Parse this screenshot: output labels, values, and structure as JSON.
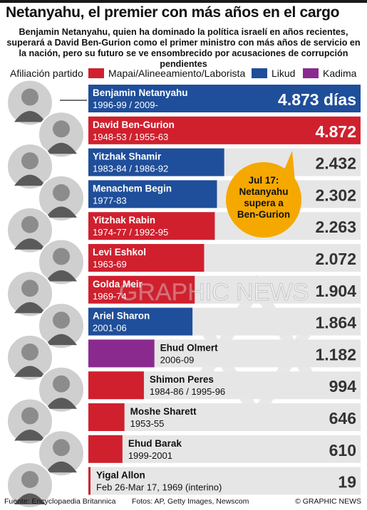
{
  "title": "Netanyahu, el premier con más años en el cargo",
  "subtitle": "Benjamin Netanyahu, quien ha dominado la política israelí en años recientes, superará a David Ben-Gurion como el primer ministro con más años de servicio en la nación, pero su futuro se ve ensombrecido por acusaciones de corrupción pendientes",
  "legend": {
    "title": "Afiliación partido",
    "items": [
      {
        "label": "Mapai/Alineeamiento/Laborista",
        "color": "#d0202e"
      },
      {
        "label": "Likud",
        "color": "#1f4e9a"
      },
      {
        "label": "Kadima",
        "color": "#8a2a8f"
      }
    ]
  },
  "callout": {
    "lines": [
      "Jul 17:",
      "Netanyahu",
      "supera a",
      "Ben-Gurion"
    ],
    "color": "#f5a800"
  },
  "watermark": "GRAPHIC NEWS",
  "footer": {
    "source": "Fuente: Encyclopaedia Britannica",
    "photos": "Fotos: AP, Getty Images, Newscom",
    "credit": "© GRAPHIC NEWS"
  },
  "chart_data": {
    "type": "bar",
    "orientation": "horizontal",
    "unit": "días",
    "bars": [
      {
        "name": "Benjamin Netanyahu",
        "terms": "1996-99 / 2009-",
        "value": 4873,
        "label": "4.873 días",
        "party": "Likud"
      },
      {
        "name": "David Ben-Gurion",
        "terms": "1948-53 / 1955-63",
        "value": 4872,
        "label": "4.872",
        "party": "Mapai/Alineeamiento/Laborista"
      },
      {
        "name": "Yitzhak Shamir",
        "terms": "1983-84 / 1986-92",
        "value": 2432,
        "label": "2.432",
        "party": "Likud"
      },
      {
        "name": "Menachem Begin",
        "terms": "1977-83",
        "value": 2302,
        "label": "2.302",
        "party": "Likud"
      },
      {
        "name": "Yitzhak Rabin",
        "terms": "1974-77 / 1992-95",
        "value": 2263,
        "label": "2.263",
        "party": "Mapai/Alineeamiento/Laborista"
      },
      {
        "name": "Levi Eshkol",
        "terms": "1963-69",
        "value": 2072,
        "label": "2.072",
        "party": "Mapai/Alineeamiento/Laborista"
      },
      {
        "name": "Golda Meir",
        "terms": "1969-74",
        "value": 1904,
        "label": "1.904",
        "party": "Mapai/Alineeamiento/Laborista"
      },
      {
        "name": "Ariel Sharon",
        "terms": "2001-06",
        "value": 1864,
        "label": "1.864",
        "party": "Likud"
      },
      {
        "name": "Ehud Olmert",
        "terms": "2006-09",
        "value": 1182,
        "label": "1.182",
        "party": "Kadima"
      },
      {
        "name": "Shimon Peres",
        "terms": "1984-86 / 1995-96",
        "value": 994,
        "label": "994",
        "party": "Mapai/Alineeamiento/Laborista"
      },
      {
        "name": "Moshe Sharett",
        "terms": "1953-55",
        "value": 646,
        "label": "646",
        "party": "Mapai/Alineeamiento/Laborista"
      },
      {
        "name": "Ehud Barak",
        "terms": "1999-2001",
        "value": 610,
        "label": "610",
        "party": "Mapai/Alineeamiento/Laborista"
      },
      {
        "name": "Yigal Allon",
        "terms": "Feb 26-Mar 17, 1969  (interino)",
        "value": 19,
        "label": "19",
        "party": "Mapai/Alineeamiento/Laborista"
      }
    ]
  }
}
